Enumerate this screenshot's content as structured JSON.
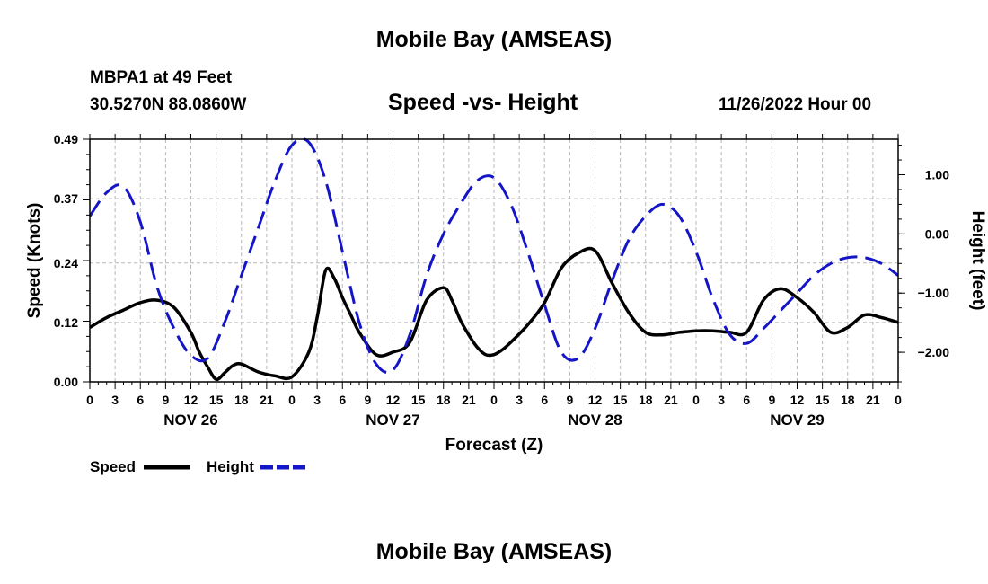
{
  "header": {
    "title": "Mobile Bay (AMSEAS)",
    "station": "MBPA1 at 49 Feet",
    "coordinates": "30.5270N  88.0860W",
    "subtitle": "Speed -vs- Height",
    "datetime": "11/26/2022 Hour 00"
  },
  "footer": {
    "title": "Mobile Bay (AMSEAS)"
  },
  "chart_data": {
    "type": "line",
    "title": "Speed -vs- Height",
    "xlabel": "Forecast (Z)",
    "ylabel": "Speed (Knots)",
    "y2label": "Height (feet)",
    "x_unit": "forecast hour from 11/26/2022 00Z",
    "xlim": [
      0,
      96
    ],
    "ylim": [
      0,
      0.49
    ],
    "y2lim": [
      -2.5,
      1.6
    ],
    "x_tick_labels": [
      "0",
      "3",
      "6",
      "9",
      "12",
      "15",
      "18",
      "21",
      "0",
      "3",
      "6",
      "9",
      "12",
      "15",
      "18",
      "21",
      "0",
      "3",
      "6",
      "9",
      "12",
      "15",
      "18",
      "21",
      "0",
      "3",
      "6",
      "9",
      "12",
      "15",
      "18",
      "21",
      "0"
    ],
    "day_labels": [
      {
        "label": "NOV 26",
        "hour": 12
      },
      {
        "label": "NOV 27",
        "hour": 36
      },
      {
        "label": "NOV 28",
        "hour": 60
      },
      {
        "label": "NOV 29",
        "hour": 84
      }
    ],
    "y_ticks": [
      "0.00",
      "0.12",
      "0.24",
      "0.37",
      "0.49"
    ],
    "y_tick_values": [
      0,
      0.12,
      0.24,
      0.37,
      0.49
    ],
    "y2_ticks": [
      "1.00",
      "0.00",
      "−1.00",
      "−2.00"
    ],
    "y2_tick_values": [
      1,
      0,
      -1,
      -2
    ],
    "grid": true,
    "legend": [
      {
        "label": "Speed",
        "color": "#000000",
        "style": "solid"
      },
      {
        "label": "Height",
        "color": "#1515c8",
        "style": "dashed"
      }
    ],
    "series": [
      {
        "name": "Speed",
        "axis": "left",
        "color": "#000000",
        "x": [
          0,
          2,
          4,
          6,
          8,
          10,
          12,
          13,
          14,
          15,
          16,
          17,
          18,
          20,
          22,
          24,
          26,
          27,
          28,
          29,
          30,
          31,
          32,
          34,
          36,
          38,
          40,
          42,
          43,
          44,
          45,
          46,
          47,
          48,
          49,
          50,
          52,
          54,
          56,
          58,
          60,
          62,
          64,
          66,
          68,
          70,
          72,
          74,
          76,
          78,
          80,
          82,
          84,
          86,
          88,
          90,
          92,
          94,
          96
        ],
        "y": [
          0.11,
          0.13,
          0.145,
          0.16,
          0.165,
          0.15,
          0.1,
          0.06,
          0.03,
          0.005,
          0.018,
          0.033,
          0.036,
          0.02,
          0.012,
          0.01,
          0.06,
          0.13,
          0.225,
          0.21,
          0.17,
          0.135,
          0.1,
          0.055,
          0.06,
          0.08,
          0.165,
          0.19,
          0.165,
          0.125,
          0.095,
          0.07,
          0.055,
          0.055,
          0.065,
          0.08,
          0.115,
          0.16,
          0.23,
          0.26,
          0.265,
          0.2,
          0.14,
          0.1,
          0.095,
          0.1,
          0.103,
          0.103,
          0.1,
          0.1,
          0.165,
          0.188,
          0.17,
          0.14,
          0.1,
          0.11,
          0.135,
          0.13,
          0.12
        ]
      },
      {
        "name": "Height",
        "axis": "right",
        "color": "#1515c8",
        "x": [
          0,
          2,
          4,
          6,
          8,
          10,
          12,
          14,
          16,
          18,
          20,
          22,
          24,
          26,
          28,
          30,
          32,
          34,
          36,
          38,
          40,
          42,
          44,
          46,
          48,
          50,
          52,
          54,
          56,
          58,
          60,
          62,
          64,
          66,
          68,
          70,
          72,
          74,
          76,
          78,
          80,
          82,
          84,
          86,
          88,
          90,
          92,
          94,
          96
        ],
        "y": [
          0.3,
          0.7,
          0.8,
          0.2,
          -0.9,
          -1.6,
          -2.05,
          -2.1,
          -1.5,
          -0.7,
          0.1,
          0.9,
          1.5,
          1.55,
          0.9,
          -0.3,
          -1.5,
          -2.2,
          -2.3,
          -1.7,
          -0.7,
          0.0,
          0.5,
          0.9,
          0.95,
          0.5,
          -0.3,
          -1.2,
          -2.0,
          -2.1,
          -1.6,
          -0.8,
          -0.1,
          0.3,
          0.5,
          0.3,
          -0.3,
          -1.1,
          -1.7,
          -1.85,
          -1.6,
          -1.3,
          -1.0,
          -0.7,
          -0.5,
          -0.4,
          -0.4,
          -0.5,
          -0.7
        ]
      }
    ]
  }
}
